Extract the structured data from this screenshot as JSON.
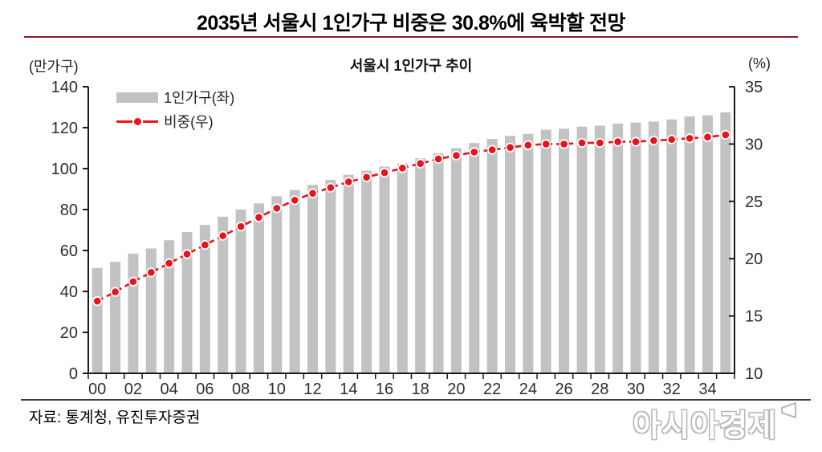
{
  "page": {
    "title": "2035년 서울시 1인가구 비중은 30.8%에 육박할 전망",
    "source": "자료: 통계청, 유진투자증권",
    "watermark": "아시아경제",
    "title_rule_color": "#8e1b28"
  },
  "chart_data": {
    "type": "combo-bar-line",
    "title": "서울시 1인가구 추이",
    "grid": false,
    "legend_position": "inside-top-left",
    "categories": [
      "00",
      "01",
      "02",
      "03",
      "04",
      "05",
      "06",
      "07",
      "08",
      "09",
      "10",
      "11",
      "12",
      "13",
      "14",
      "15",
      "16",
      "17",
      "18",
      "19",
      "20",
      "21",
      "22",
      "23",
      "24",
      "25",
      "26",
      "27",
      "28",
      "29",
      "30",
      "31",
      "32",
      "33",
      "34",
      "35"
    ],
    "x_label_interval": 2,
    "left_axis": {
      "unit": "(만가구)",
      "min": 0,
      "max": 140,
      "step": 20
    },
    "right_axis": {
      "unit": "(%)",
      "min": 10,
      "max": 35,
      "step": 5
    },
    "series": [
      {
        "name": "1인가구(좌)",
        "type": "bar",
        "axis": "left",
        "color": "#c2c2c2",
        "values": [
          51.5,
          54.5,
          58.5,
          61,
          65,
          69,
          72.5,
          76.5,
          80,
          83,
          86.5,
          89.5,
          92,
          94.5,
          97,
          99,
          101,
          102.5,
          105,
          107.5,
          110,
          112.5,
          114.5,
          116,
          117,
          119,
          119.5,
          120.5,
          121,
          122,
          122.5,
          123,
          124,
          125.5,
          126,
          127.5
        ]
      },
      {
        "name": "비중(우)",
        "type": "line",
        "axis": "right",
        "color": "#e8131d",
        "dashed": true,
        "point_stroke": "#ffffff",
        "values": [
          16.3,
          17.1,
          18.0,
          18.8,
          19.6,
          20.4,
          21.2,
          22.0,
          22.8,
          23.6,
          24.4,
          25.1,
          25.7,
          26.2,
          26.7,
          27.1,
          27.5,
          27.9,
          28.3,
          28.7,
          29.0,
          29.3,
          29.5,
          29.7,
          29.9,
          30.0,
          30.0,
          30.1,
          30.1,
          30.2,
          30.2,
          30.3,
          30.4,
          30.5,
          30.6,
          30.8
        ]
      }
    ]
  }
}
